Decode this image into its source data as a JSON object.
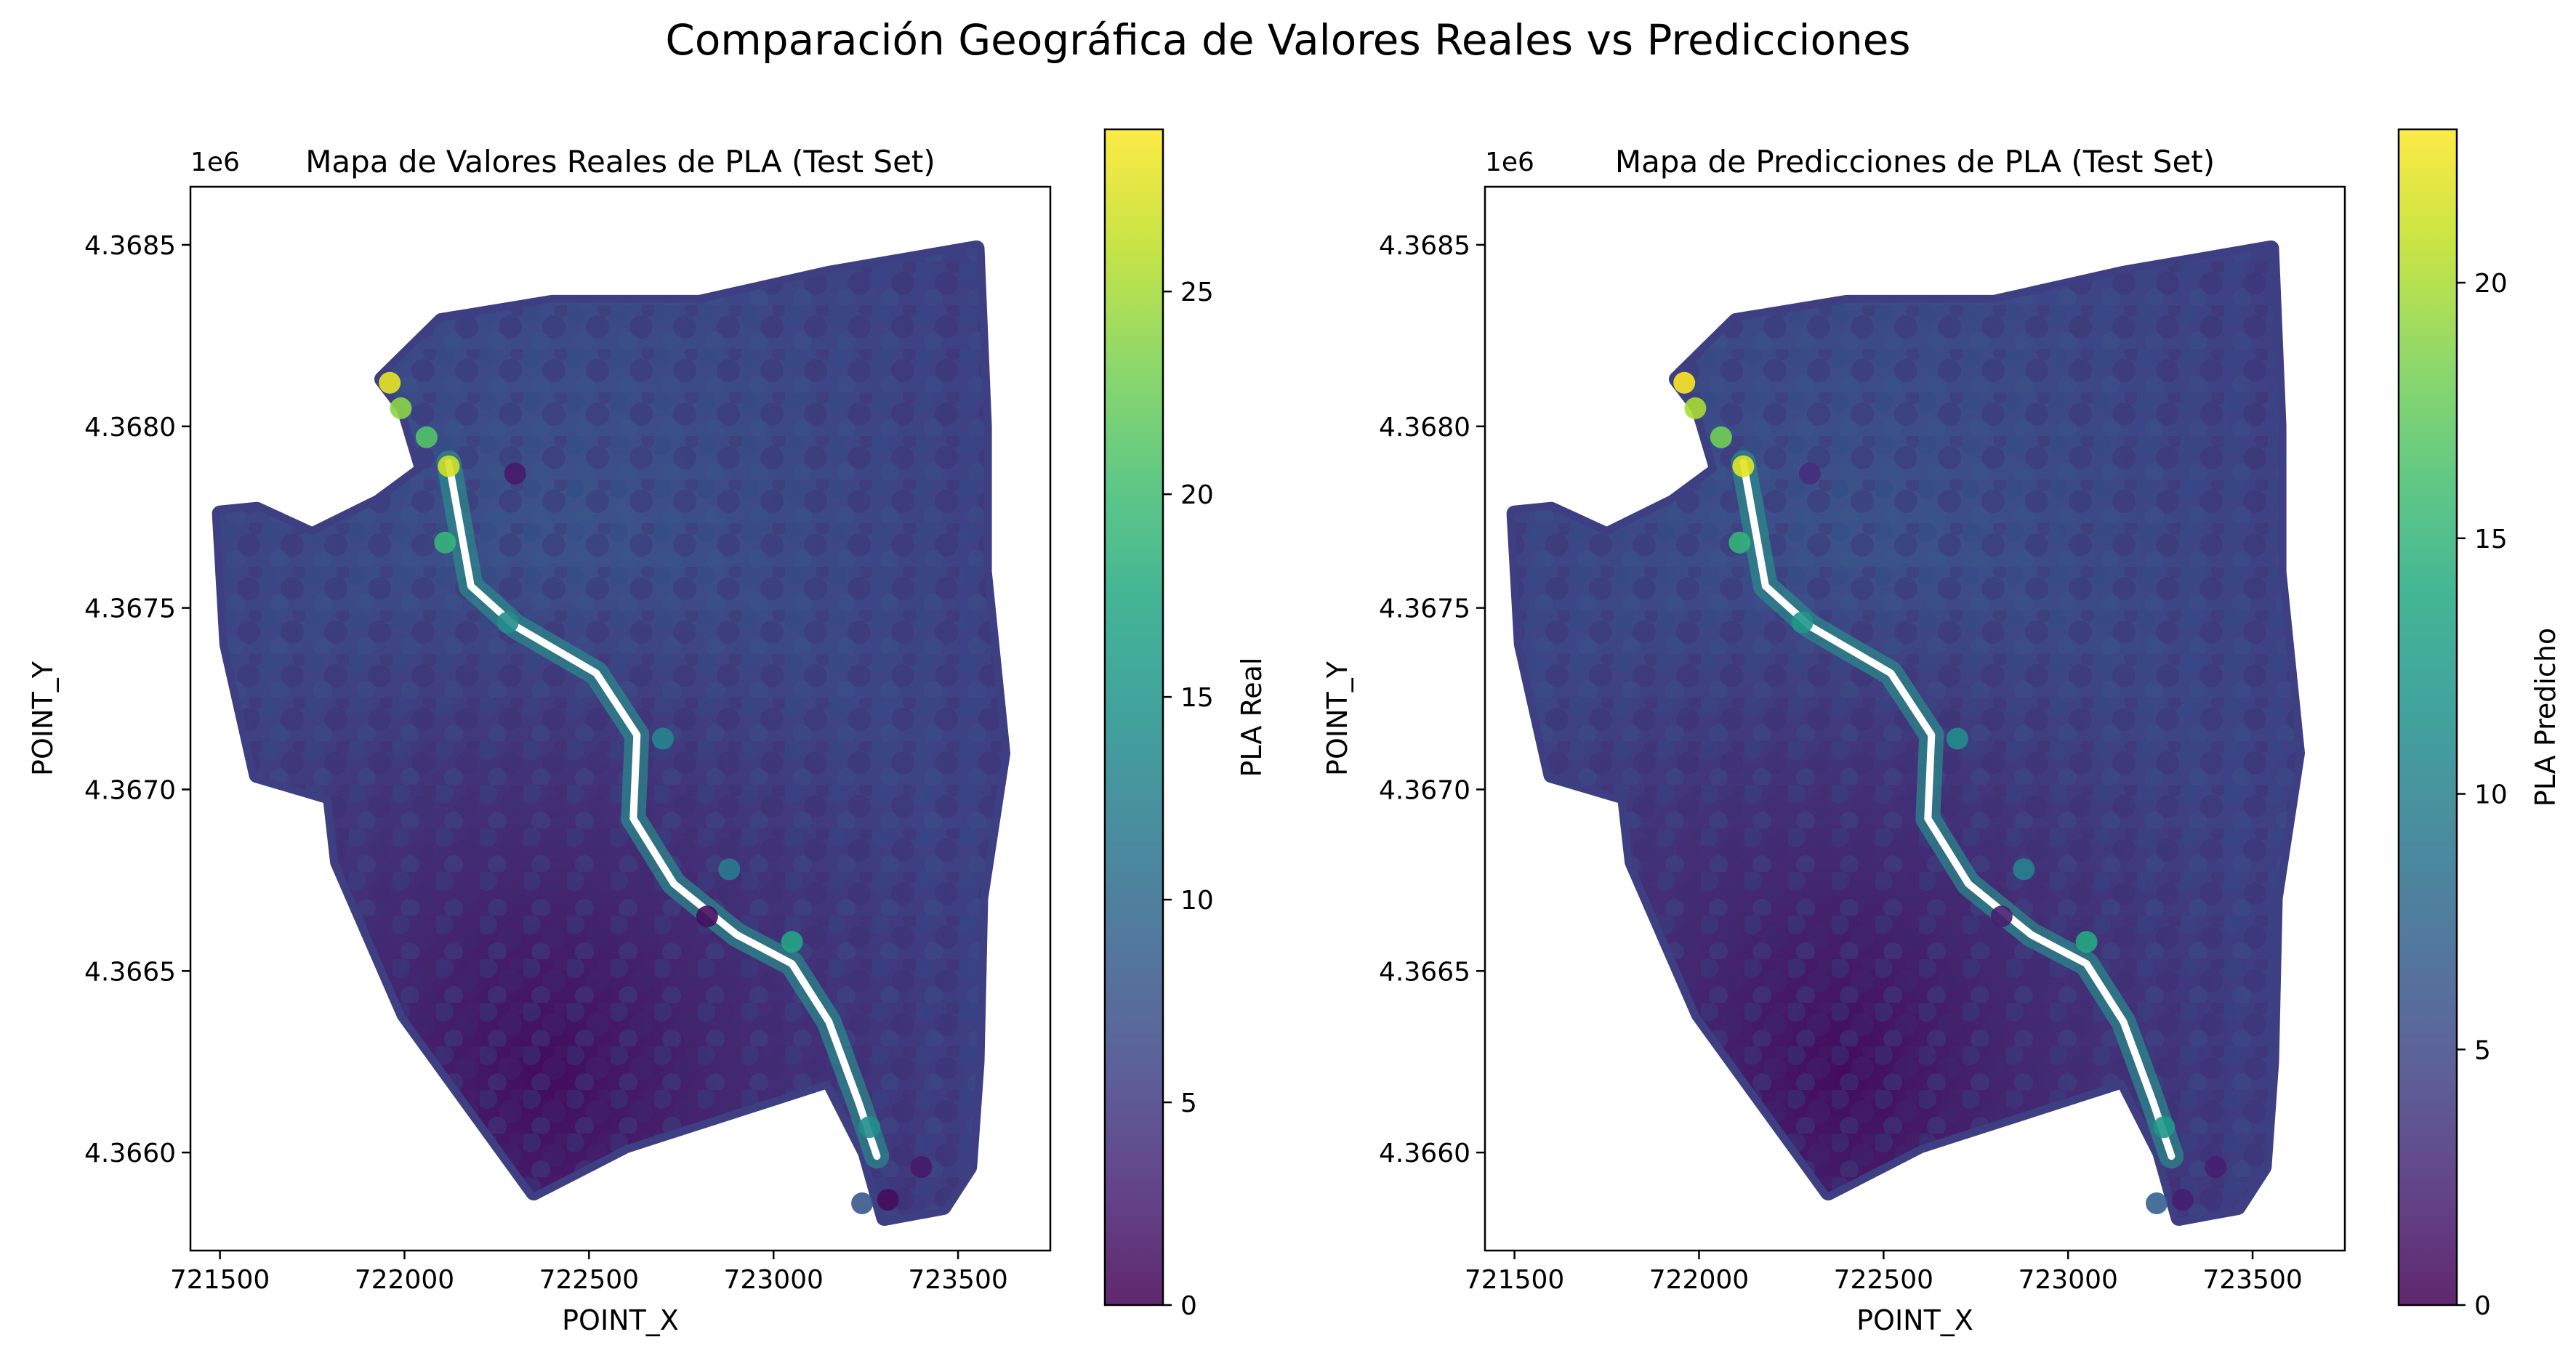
{
  "suptitle": "Comparación Geográfica de Valores Reales vs Predicciones",
  "chart_data": [
    {
      "type": "scatter",
      "title": "Mapa de Valores Reales de PLA (Test Set)",
      "xlabel": "POINT_X",
      "ylabel": "POINT_Y",
      "offset_text": "1e6",
      "x_ticks": [
        "721500",
        "722000",
        "722500",
        "723000",
        "723500"
      ],
      "y_ticks": [
        "4.3660",
        "4.3665",
        "4.3670",
        "4.3675",
        "4.3680",
        "4.3685"
      ],
      "xlim": [
        721420,
        723750
      ],
      "ylim": [
        4365730,
        4368660
      ],
      "colorbar": {
        "label": "PLA Real",
        "colormap": "viridis",
        "range": [
          0,
          29
        ],
        "ticks": [
          "0",
          "5",
          "10",
          "15",
          "20",
          "25"
        ]
      },
      "points": [
        {
          "x": 721960,
          "y": 4368120,
          "value": 28
        },
        {
          "x": 722120,
          "y": 4367890,
          "value": 27
        },
        {
          "x": 721990,
          "y": 4368050,
          "value": 24
        },
        {
          "x": 722060,
          "y": 4367970,
          "value": 21
        },
        {
          "x": 722110,
          "y": 4367680,
          "value": 19
        },
        {
          "x": 722280,
          "y": 4367460,
          "value": 14
        },
        {
          "x": 722700,
          "y": 4367140,
          "value": 13
        },
        {
          "x": 723050,
          "y": 4366580,
          "value": 17
        },
        {
          "x": 722880,
          "y": 4366780,
          "value": 12
        },
        {
          "x": 723260,
          "y": 4366070,
          "value": 14
        },
        {
          "x": 723240,
          "y": 4365860,
          "value": 8
        },
        {
          "x": 723310,
          "y": 4365870,
          "value": 1
        },
        {
          "x": 723400,
          "y": 4365960,
          "value": 2
        },
        {
          "x": 722820,
          "y": 4366650,
          "value": 1
        },
        {
          "x": 722300,
          "y": 4367870,
          "value": 2
        }
      ]
    },
    {
      "type": "scatter",
      "title": "Mapa de Predicciones de PLA (Test Set)",
      "xlabel": "POINT_X",
      "ylabel": "POINT_Y",
      "offset_text": "1e6",
      "x_ticks": [
        "721500",
        "722000",
        "722500",
        "723000",
        "723500"
      ],
      "y_ticks": [
        "4.3660",
        "4.3665",
        "4.3670",
        "4.3675",
        "4.3680",
        "4.3685"
      ],
      "xlim": [
        721420,
        723750
      ],
      "ylim": [
        4365730,
        4368660
      ],
      "colorbar": {
        "label": "PLA Predicho",
        "colormap": "viridis",
        "range": [
          0,
          23
        ],
        "ticks": [
          "0",
          "5",
          "10",
          "15",
          "20"
        ]
      },
      "points": [
        {
          "x": 721960,
          "y": 4368120,
          "value": 23
        },
        {
          "x": 722120,
          "y": 4367890,
          "value": 22
        },
        {
          "x": 721990,
          "y": 4368050,
          "value": 20
        },
        {
          "x": 722060,
          "y": 4367970,
          "value": 18
        },
        {
          "x": 722110,
          "y": 4367680,
          "value": 15
        },
        {
          "x": 722280,
          "y": 4367460,
          "value": 12
        },
        {
          "x": 722700,
          "y": 4367140,
          "value": 11
        },
        {
          "x": 723050,
          "y": 4366580,
          "value": 14
        },
        {
          "x": 722880,
          "y": 4366780,
          "value": 10
        },
        {
          "x": 723260,
          "y": 4366070,
          "value": 12
        },
        {
          "x": 723240,
          "y": 4365860,
          "value": 7
        },
        {
          "x": 723310,
          "y": 4365870,
          "value": 2
        },
        {
          "x": 723400,
          "y": 4365960,
          "value": 2
        },
        {
          "x": 722820,
          "y": 4366650,
          "value": 2
        },
        {
          "x": 722300,
          "y": 4367870,
          "value": 3
        }
      ]
    }
  ]
}
